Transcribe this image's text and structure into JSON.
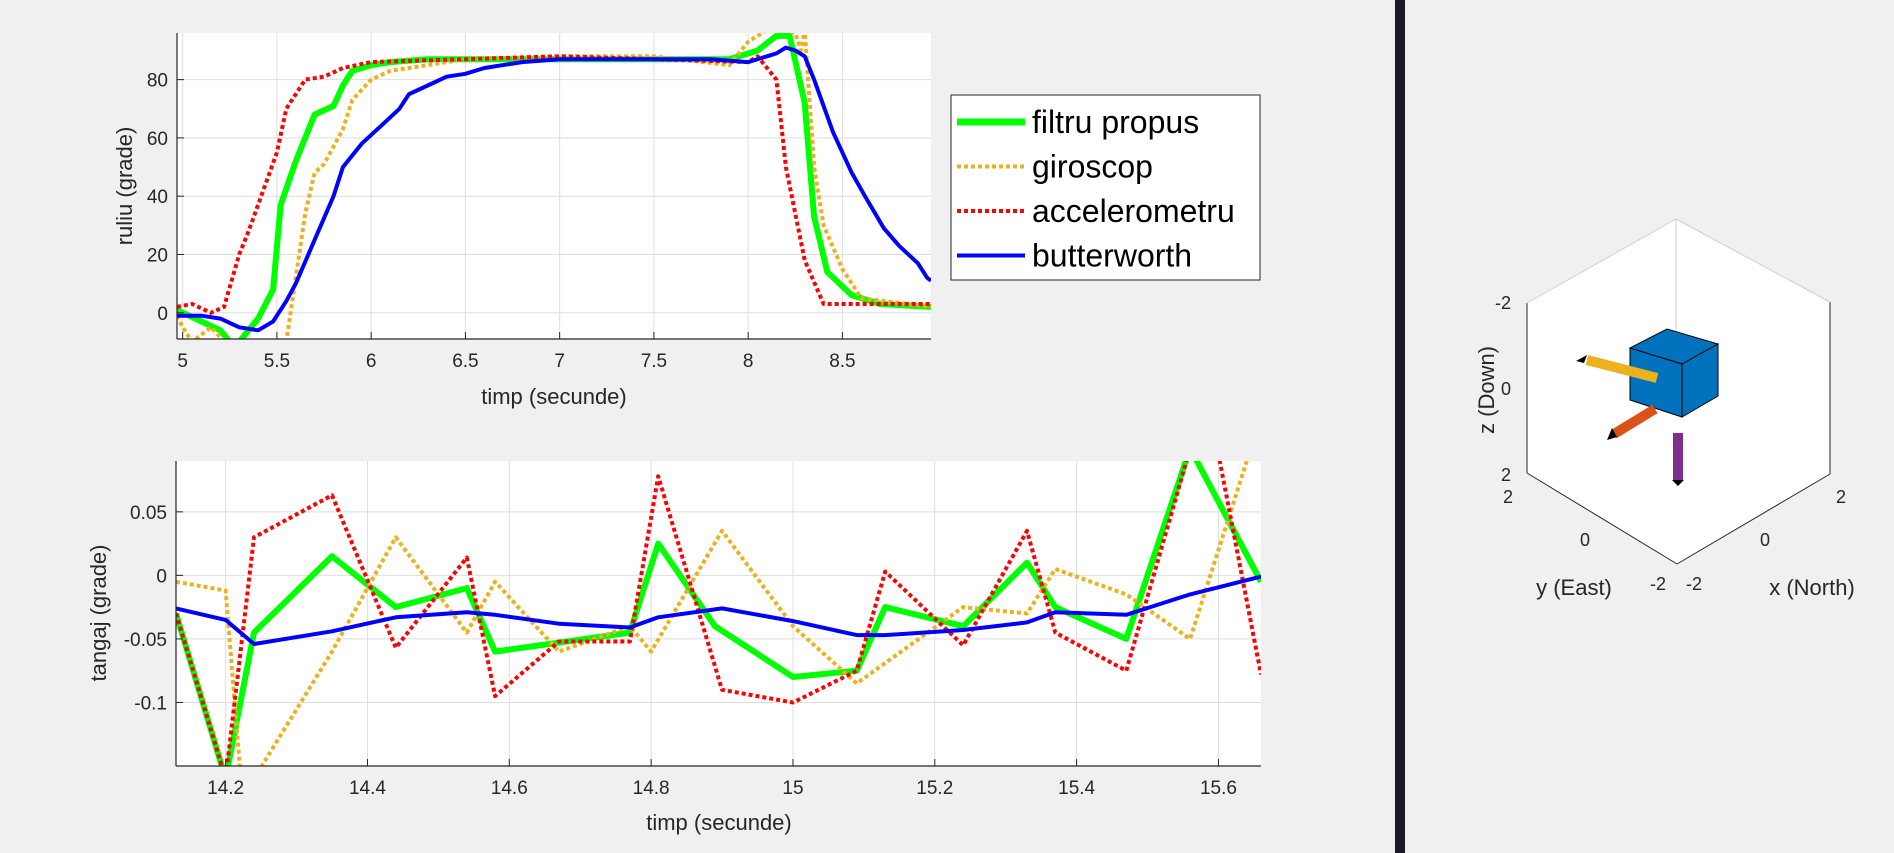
{
  "colors": {
    "filtru": "#00ff00",
    "giroscop": "#edb120",
    "accelerometru": "#ff0000",
    "butterworth": "#0000ff",
    "cube": "#0072bd",
    "axis_x": "#d95319",
    "axis_y": "#edb120",
    "axis_z": "#7e2f8e",
    "background": "#f0f0f0",
    "divider": "#1a1a24"
  },
  "legend": {
    "placement": "right of top chart",
    "entries": [
      "filtru propus",
      "giroscop",
      "accelerometru",
      "butterworth"
    ]
  },
  "chart_data": [
    {
      "type": "line",
      "xlabel": "timp (secunde)",
      "ylabel": "ruliu (grade)",
      "xlim": [
        4.97,
        8.97
      ],
      "ylim": [
        -9,
        96
      ],
      "xticks": [
        5,
        5.5,
        6,
        6.5,
        7,
        7.5,
        8,
        8.5
      ],
      "xtick_labels": [
        "5",
        "5.5",
        "6",
        "6.5",
        "7",
        "7.5",
        "8",
        "8.5"
      ],
      "yticks": [
        0,
        20,
        40,
        60,
        80
      ],
      "ytick_labels": [
        "0",
        "20",
        "40",
        "60",
        "80"
      ],
      "grid": true,
      "series": [
        {
          "name": "filtru propus",
          "style": "solid",
          "x": [
            4.97,
            5.1,
            5.2,
            5.25,
            5.3,
            5.4,
            5.48,
            5.52,
            5.6,
            5.7,
            5.8,
            5.85,
            5.9,
            6.0,
            6.1,
            6.3,
            6.5,
            7.0,
            7.5,
            7.9,
            8.05,
            8.15,
            8.22,
            8.3,
            8.35,
            8.42,
            8.55,
            8.7,
            8.97
          ],
          "y": [
            1,
            -3,
            -6,
            -10,
            -10,
            -2,
            8,
            37,
            52,
            68,
            71,
            78,
            83,
            85,
            86,
            87,
            87,
            87,
            87,
            87,
            90,
            95,
            95,
            72,
            33,
            14,
            6,
            3,
            2
          ]
        },
        {
          "name": "giroscop",
          "style": "dotted",
          "x": [
            4.97,
            5.0,
            5.05,
            5.15,
            5.3,
            5.45,
            5.55,
            5.65,
            5.7,
            5.75,
            5.85,
            5.9,
            6.0,
            6.1,
            6.3,
            6.5,
            7.0,
            7.5,
            7.9,
            8.0,
            8.1,
            8.2,
            8.25,
            8.28,
            8.3,
            8.35,
            8.4,
            8.5,
            8.6,
            8.97
          ],
          "y": [
            -1,
            -5,
            -10,
            -5,
            -15,
            -25,
            -10,
            34,
            48,
            51,
            63,
            73,
            80,
            83,
            85,
            87,
            88,
            88,
            85,
            93,
            97,
            97,
            96,
            90,
            97,
            50,
            30,
            15,
            5,
            2
          ]
        },
        {
          "name": "accelerometru",
          "style": "dotted",
          "x": [
            4.97,
            5.05,
            5.15,
            5.22,
            5.3,
            5.35,
            5.5,
            5.55,
            5.65,
            5.75,
            5.85,
            6.0,
            6.5,
            7.0,
            7.5,
            8.0,
            8.05,
            8.15,
            8.2,
            8.3,
            8.4,
            8.97
          ],
          "y": [
            2,
            3,
            0,
            2,
            20,
            28,
            55,
            70,
            80,
            81,
            84,
            86,
            87,
            88,
            87,
            86,
            88,
            80,
            50,
            18,
            3,
            3
          ]
        },
        {
          "name": "butterworth",
          "style": "solid",
          "x": [
            4.97,
            5.1,
            5.2,
            5.3,
            5.4,
            5.48,
            5.55,
            5.6,
            5.7,
            5.8,
            5.85,
            5.95,
            6.05,
            6.15,
            6.2,
            6.3,
            6.4,
            6.5,
            6.6,
            6.8,
            7.0,
            7.5,
            7.8,
            8.0,
            8.1,
            8.15,
            8.2,
            8.25,
            8.3,
            8.35,
            8.45,
            8.55,
            8.62,
            8.72,
            8.8,
            8.9,
            8.95,
            8.97
          ],
          "y": [
            -1,
            -1,
            -2,
            -5,
            -6,
            -3,
            4,
            10,
            25,
            40,
            50,
            58,
            64,
            70,
            75,
            78,
            81,
            82,
            84,
            86,
            87,
            87,
            87,
            86,
            88,
            89,
            91,
            90,
            88,
            80,
            62,
            48,
            40,
            29,
            23,
            17,
            12,
            11
          ]
        }
      ]
    },
    {
      "type": "line",
      "xlabel": "timp (secunde)",
      "ylabel": "tangaj (grade)",
      "xlim": [
        14.13,
        15.66
      ],
      "ylim": [
        -0.15,
        0.09
      ],
      "xticks": [
        14.2,
        14.4,
        14.6,
        14.8,
        15,
        15.2,
        15.4,
        15.6
      ],
      "xtick_labels": [
        "14.2",
        "14.4",
        "14.6",
        "14.8",
        "15",
        "15.2",
        "15.4",
        "15.6"
      ],
      "yticks": [
        0.05,
        0,
        -0.05,
        -0.1
      ],
      "ytick_labels": [
        "0.05",
        "0",
        "-0.05",
        "-0.1"
      ],
      "grid": true,
      "series": [
        {
          "name": "filtru propus",
          "style": "solid",
          "x": [
            14.13,
            14.2,
            14.24,
            14.35,
            14.44,
            14.54,
            14.58,
            14.77,
            14.81,
            14.89,
            15.0,
            15.09,
            15.13,
            15.24,
            15.33,
            15.37,
            15.47,
            15.56,
            15.66
          ],
          "y": [
            -0.03,
            -0.16,
            -0.045,
            0.015,
            -0.025,
            -0.01,
            -0.06,
            -0.045,
            0.025,
            -0.04,
            -0.08,
            -0.075,
            -0.025,
            -0.04,
            0.01,
            -0.025,
            -0.05,
            0.1,
            -0.005
          ]
        },
        {
          "name": "giroscop",
          "style": "dotted",
          "x": [
            14.13,
            14.2,
            14.22,
            14.24,
            14.35,
            14.44,
            14.54,
            14.58,
            14.67,
            14.77,
            14.8,
            14.9,
            15.0,
            15.09,
            15.24,
            15.33,
            15.37,
            15.47,
            15.56,
            15.64,
            15.66
          ],
          "y": [
            -0.005,
            -0.012,
            -0.15,
            -0.16,
            -0.06,
            0.03,
            -0.045,
            -0.005,
            -0.06,
            -0.04,
            -0.06,
            0.035,
            -0.04,
            -0.085,
            -0.025,
            -0.03,
            0.005,
            -0.015,
            -0.05,
            0.09,
            0.095
          ]
        },
        {
          "name": "accelerometru",
          "style": "dotted",
          "x": [
            14.13,
            14.2,
            14.24,
            14.35,
            14.44,
            14.54,
            14.58,
            14.67,
            14.77,
            14.81,
            14.9,
            15.0,
            15.09,
            15.13,
            15.24,
            15.33,
            15.37,
            15.47,
            15.56,
            15.6,
            15.66
          ],
          "y": [
            -0.03,
            -0.16,
            0.03,
            0.063,
            -0.057,
            0.014,
            -0.095,
            -0.052,
            -0.052,
            0.078,
            -0.09,
            -0.1,
            -0.075,
            0.003,
            -0.055,
            0.035,
            -0.045,
            -0.075,
            0.1,
            0.095,
            -0.078
          ]
        },
        {
          "name": "butterworth",
          "style": "solid",
          "x": [
            14.13,
            14.2,
            14.24,
            14.35,
            14.44,
            14.54,
            14.58,
            14.67,
            14.77,
            14.81,
            14.9,
            15.0,
            15.09,
            15.13,
            15.24,
            15.33,
            15.37,
            15.47,
            15.56,
            15.66
          ],
          "y": [
            -0.026,
            -0.035,
            -0.054,
            -0.044,
            -0.033,
            -0.029,
            -0.031,
            -0.038,
            -0.041,
            -0.033,
            -0.026,
            -0.036,
            -0.047,
            -0.047,
            -0.043,
            -0.037,
            -0.029,
            -0.031,
            -0.015,
            -0.001
          ]
        }
      ]
    },
    {
      "type": "scatter",
      "subtype": "3d-orientation",
      "xlabel": "x (North)",
      "ylabel": "y (East)",
      "zlabel": "z (Down)",
      "xtick_labels": [
        "-2",
        "0",
        "2"
      ],
      "ytick_labels": [
        "2",
        "0",
        "-2"
      ],
      "ztick_labels": [
        "-2",
        "0",
        "2"
      ],
      "grid": true
    }
  ]
}
